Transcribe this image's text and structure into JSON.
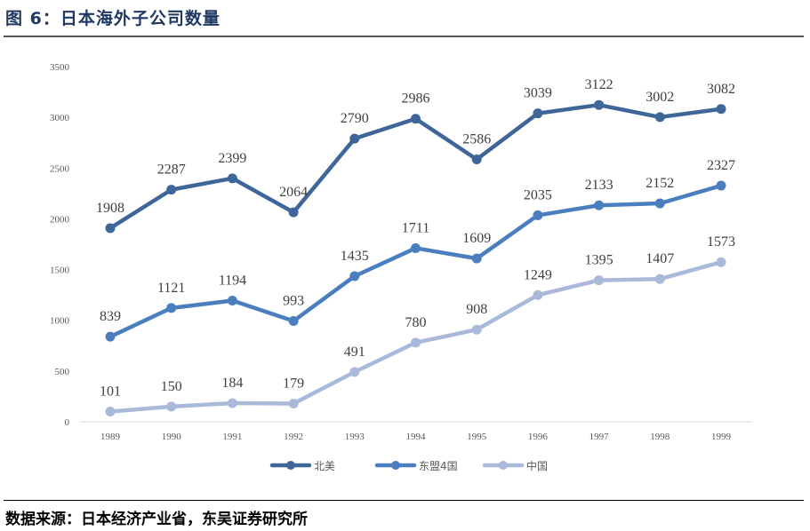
{
  "title": "图 6：日本海外子公司数量",
  "source": "数据来源：日本经济产业省，东吴证券研究所",
  "chart_data": {
    "type": "line",
    "title": "日本海外子公司数量",
    "xlabel": "",
    "ylabel": "",
    "categories": [
      "1989",
      "1990",
      "1991",
      "1992",
      "1993",
      "1994",
      "1995",
      "1996",
      "1997",
      "1998",
      "1999"
    ],
    "ylim": [
      0,
      3500
    ],
    "yticks": [
      "0",
      "500",
      "1000",
      "1500",
      "2000",
      "2500",
      "3000",
      "3500"
    ],
    "grid": false,
    "legend": "bottom",
    "series": [
      {
        "name": "北美",
        "color": "#3e6698",
        "values": [
          1908,
          2287,
          2399,
          2064,
          2790,
          2986,
          2586,
          3039,
          3122,
          3002,
          3082
        ]
      },
      {
        "name": "东盟4国",
        "color": "#4a7ebf",
        "values": [
          839,
          1121,
          1194,
          993,
          1435,
          1711,
          1609,
          2035,
          2133,
          2152,
          2327
        ]
      },
      {
        "name": "中国",
        "color": "#a8b9d9",
        "values": [
          101,
          150,
          184,
          179,
          491,
          780,
          908,
          1249,
          1395,
          1407,
          1573
        ]
      }
    ]
  }
}
